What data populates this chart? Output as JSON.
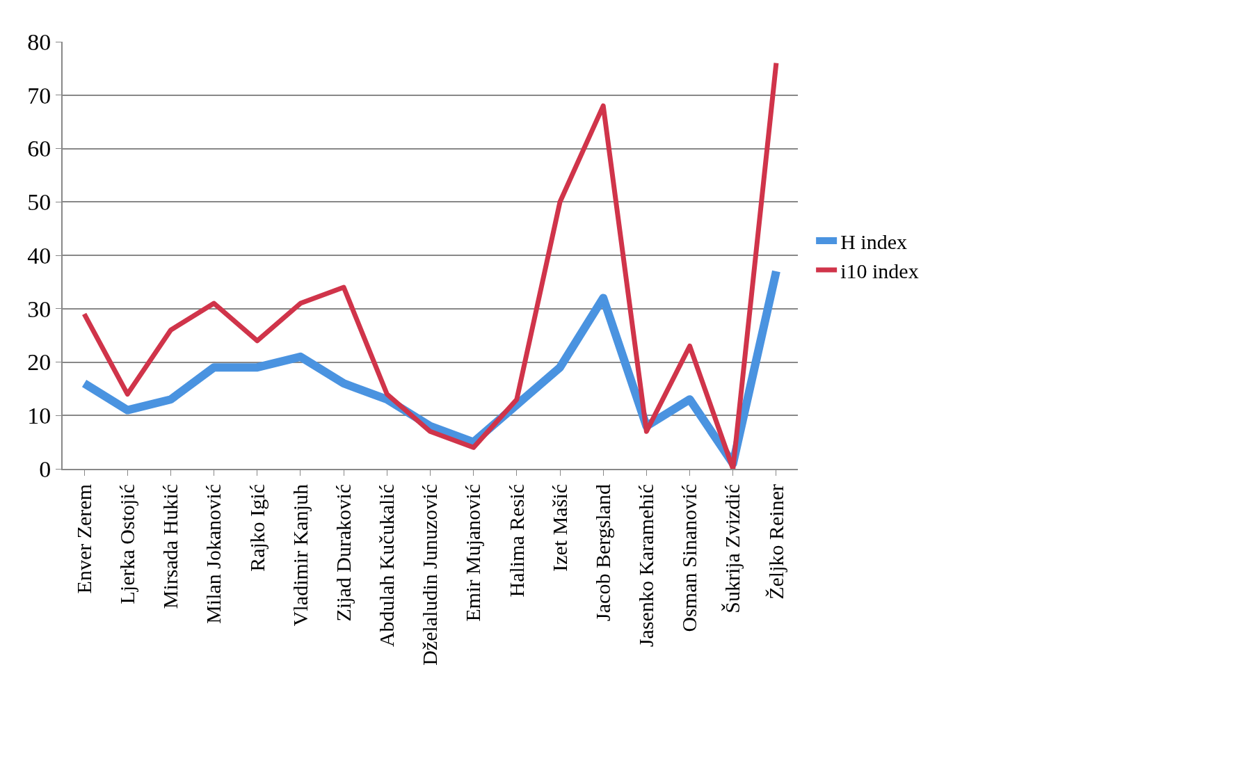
{
  "chart_data": {
    "type": "line",
    "categories": [
      "Enver Zerem",
      "Ljerka Ostojić",
      "Mirsada Hukić",
      "Milan Jokanović",
      "Rajko Igić",
      "Vladimir Kanjuh",
      "Zijad Duraković",
      "Abdulah Kučukalić",
      "Dželaludin Junuzović",
      "Emir Mujanović",
      "Halima Resić",
      "Izet Mašić",
      "Jacob Bergsland",
      "Jasenko Karamehić",
      "Osman Sinanović",
      "Šukrija Zvizdić",
      "Željko Reiner"
    ],
    "series": [
      {
        "name": "H index",
        "color": "#4a93e0",
        "values": [
          16,
          11,
          13,
          19,
          19,
          21,
          16,
          13,
          8,
          5,
          12,
          19,
          32,
          8,
          13,
          1,
          37
        ]
      },
      {
        "name": "i10 index",
        "color": "#d0344a",
        "values": [
          29,
          14,
          26,
          31,
          24,
          31,
          34,
          14,
          7,
          4,
          13,
          50,
          68,
          7,
          23,
          0,
          76
        ]
      }
    ],
    "ylim": [
      0,
      80
    ],
    "yticks": [
      0,
      10,
      20,
      30,
      40,
      50,
      60,
      70,
      80
    ],
    "grid": "y",
    "legend": "right",
    "marker": "none",
    "line_style": "solid"
  }
}
